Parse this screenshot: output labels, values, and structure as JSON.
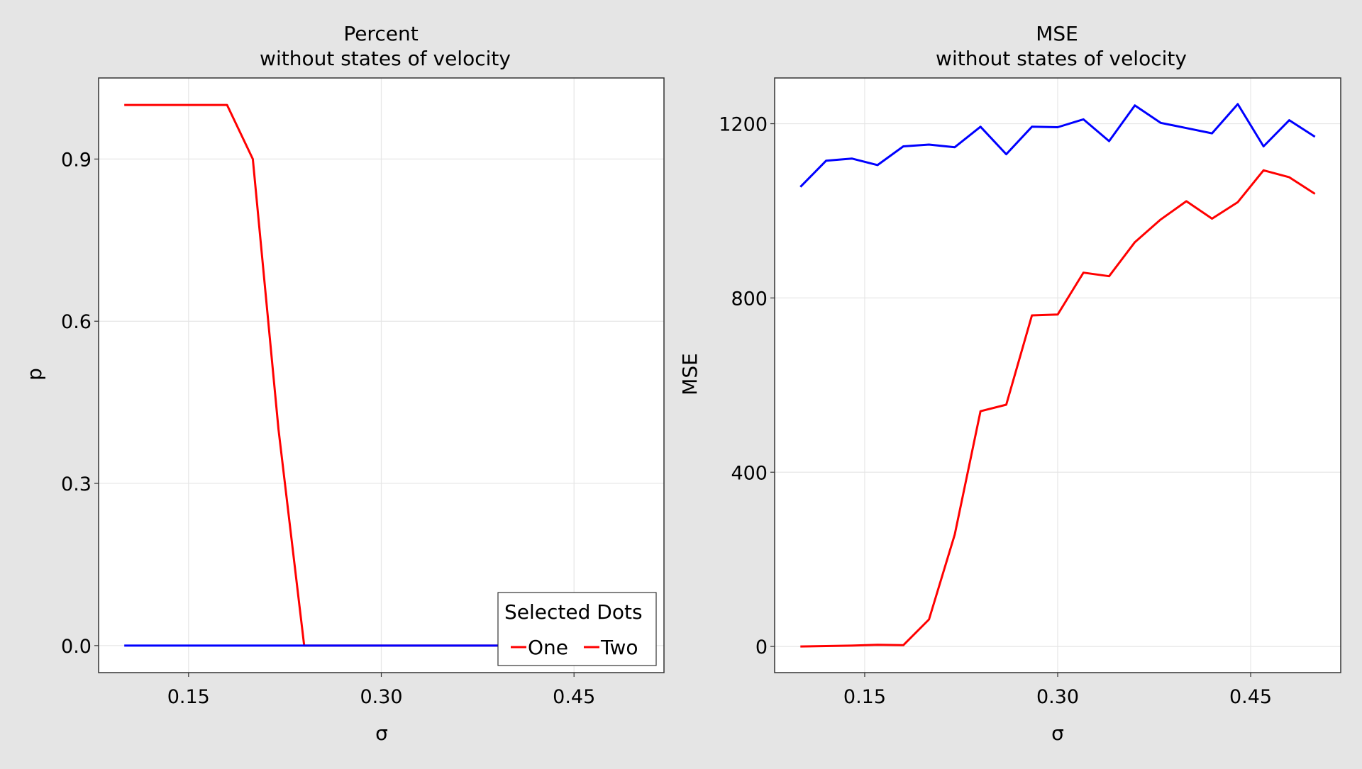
{
  "colors": {
    "background": "#e5e5e5",
    "plot_background": "#ffffff",
    "grid": "#e6e6e6",
    "series_one": "#ff0000",
    "series_two": "#0000ff"
  },
  "chart_data": [
    {
      "type": "line",
      "title": "Percent",
      "subtitle": "without states of velocity",
      "xlabel": "σ",
      "ylabel": "p",
      "xlim": [
        0.08,
        0.52
      ],
      "ylim": [
        -0.05,
        1.05
      ],
      "xticks": [
        0.15,
        0.3,
        0.45
      ],
      "xtick_labels": [
        "0.15",
        "0.30",
        "0.45"
      ],
      "yticks": [
        0.0,
        0.3,
        0.6,
        0.9
      ],
      "ytick_labels": [
        "0.0",
        "0.3",
        "0.6",
        "0.9"
      ],
      "grid": true,
      "legend": {
        "title": "Selected Dots",
        "position": "bottom-right",
        "entries": [
          "One",
          "Two"
        ]
      },
      "series": [
        {
          "name": "One",
          "color": "#ff0000",
          "x": [
            0.1,
            0.12,
            0.14,
            0.16,
            0.18,
            0.2,
            0.22,
            0.24,
            0.26,
            0.28,
            0.3,
            0.32,
            0.34,
            0.36,
            0.38,
            0.4,
            0.42,
            0.44,
            0.46,
            0.48,
            0.5
          ],
          "y": [
            1.0,
            1.0,
            1.0,
            1.0,
            1.0,
            0.9,
            0.4,
            0.0,
            0.0,
            0.0,
            0.0,
            0.0,
            0.0,
            0.0,
            0.0,
            0.0,
            0.0,
            0.0,
            0.0,
            0.0,
            0.0
          ]
        },
        {
          "name": "Two",
          "color": "#0000ff",
          "x": [
            0.1,
            0.12,
            0.14,
            0.16,
            0.18,
            0.2,
            0.22,
            0.24,
            0.26,
            0.28,
            0.3,
            0.32,
            0.34,
            0.36,
            0.38,
            0.4,
            0.42,
            0.44,
            0.46,
            0.48,
            0.5
          ],
          "y": [
            0.0,
            0.0,
            0.0,
            0.0,
            0.0,
            0.0,
            0.0,
            0.0,
            0.0,
            0.0,
            0.0,
            0.0,
            0.0,
            0.0,
            0.0,
            0.0,
            0.0,
            0.0,
            0.0,
            0.0,
            0.0
          ]
        }
      ]
    },
    {
      "type": "line",
      "title": "MSE",
      "subtitle": "without states of velocity",
      "xlabel": "σ",
      "ylabel": "MSE",
      "xlim": [
        0.08,
        0.52
      ],
      "ylim": [
        -60,
        1305
      ],
      "xticks": [
        0.15,
        0.3,
        0.45
      ],
      "xtick_labels": [
        "0.15",
        "0.30",
        "0.45"
      ],
      "yticks": [
        0,
        400,
        800,
        1200
      ],
      "ytick_labels": [
        "0",
        "400",
        "800",
        "1200"
      ],
      "grid": true,
      "series": [
        {
          "name": "One",
          "color": "#ff0000",
          "x": [
            0.1,
            0.12,
            0.14,
            0.16,
            0.18,
            0.2,
            0.22,
            0.24,
            0.26,
            0.28,
            0.3,
            0.32,
            0.34,
            0.36,
            0.38,
            0.4,
            0.42,
            0.44,
            0.46,
            0.48,
            0.5
          ],
          "y": [
            0,
            1,
            2,
            4,
            3,
            62,
            257,
            540,
            555,
            760,
            762,
            858,
            850,
            928,
            980,
            1022,
            982,
            1020,
            1093,
            1077,
            1039
          ]
        },
        {
          "name": "Two",
          "color": "#0000ff",
          "x": [
            0.1,
            0.12,
            0.14,
            0.16,
            0.18,
            0.2,
            0.22,
            0.24,
            0.26,
            0.28,
            0.3,
            0.32,
            0.34,
            0.36,
            0.38,
            0.4,
            0.42,
            0.44,
            0.46,
            0.48,
            0.5
          ],
          "y": [
            1055,
            1115,
            1120,
            1105,
            1148,
            1152,
            1146,
            1193,
            1130,
            1193,
            1192,
            1210,
            1160,
            1242,
            1202,
            1190,
            1178,
            1245,
            1148,
            1208,
            1170
          ]
        }
      ]
    }
  ]
}
